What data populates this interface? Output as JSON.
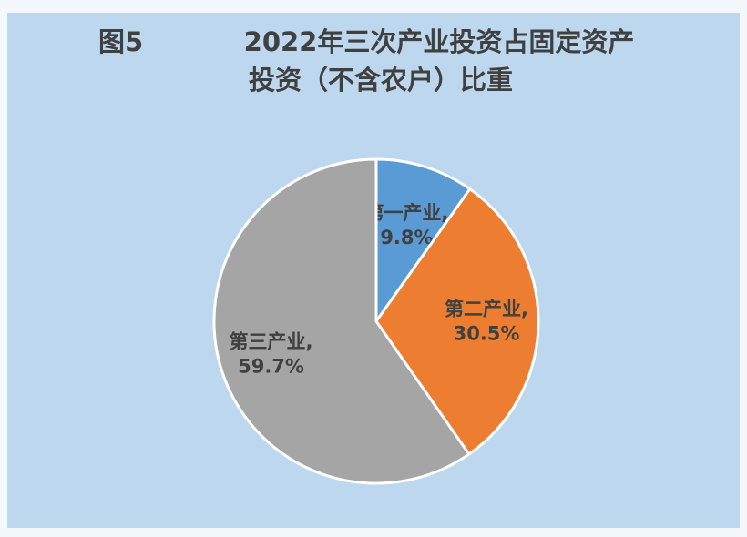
{
  "chart_data": {
    "type": "pie",
    "figure_label": "图5",
    "title": [
      "2022年三次产业投资占固定资产",
      "投资（不含农户）比重"
    ],
    "categories": [
      "第一产业,",
      "第二产业,",
      "第三产业,"
    ],
    "values": [
      9.8,
      30.5,
      59.7
    ],
    "value_labels": [
      "9.8%",
      "30.5%",
      "59.7%"
    ],
    "colors": [
      "#5b9bd5",
      "#ed7d31",
      "#a5a5a5"
    ],
    "start_angle": 0,
    "direction": "clockwise"
  }
}
